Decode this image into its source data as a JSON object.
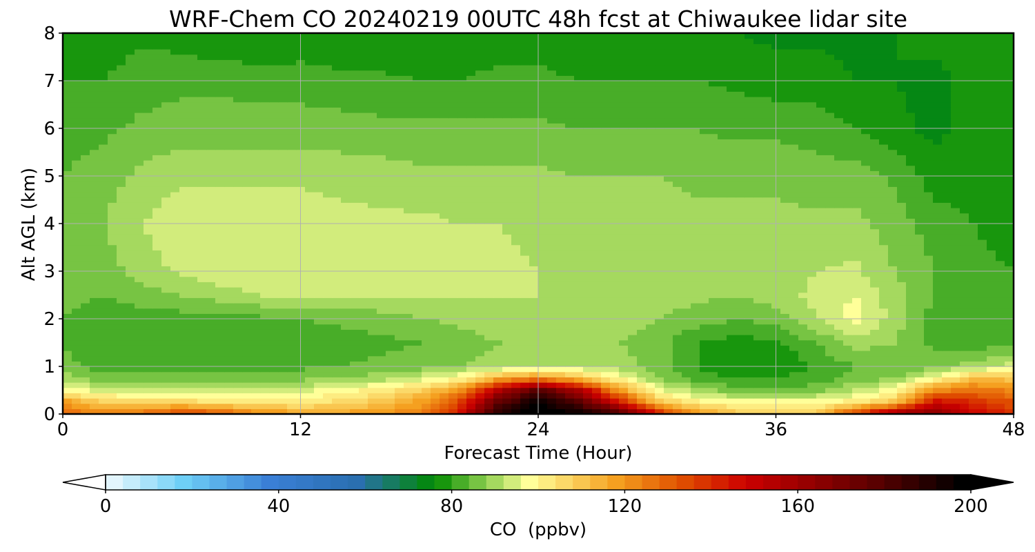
{
  "chart_data": {
    "type": "heatmap",
    "title": "WRF-Chem CO  20240219 00UTC 48h fcst at Chiwaukee lidar site",
    "xlabel": "Forecast Time (Hour)",
    "ylabel": "Alt AGL (km)",
    "xlim": [
      0,
      48
    ],
    "ylim": [
      0,
      8
    ],
    "xticks": [
      0,
      12,
      24,
      36,
      48
    ],
    "yticks": [
      0,
      1,
      2,
      3,
      4,
      5,
      6,
      7,
      8
    ],
    "grid": true,
    "colorbar": {
      "label": "CO  (ppbv)",
      "orientation": "horizontal",
      "placement": "bottom",
      "range": [
        0,
        200
      ],
      "ticks": [
        0,
        40,
        80,
        120,
        160,
        200
      ],
      "extend": "both",
      "stops": [
        {
          "value": 0,
          "color": "#ffffff"
        },
        {
          "value": 20,
          "color": "#6ecff6"
        },
        {
          "value": 40,
          "color": "#3a7fd6"
        },
        {
          "value": 60,
          "color": "#2a6fb0"
        },
        {
          "value": 78,
          "color": "#008a00"
        },
        {
          "value": 90,
          "color": "#8fd050"
        },
        {
          "value": 100,
          "color": "#ffff99"
        },
        {
          "value": 120,
          "color": "#f5a020"
        },
        {
          "value": 135,
          "color": "#e05000"
        },
        {
          "value": 150,
          "color": "#cc0000"
        },
        {
          "value": 180,
          "color": "#5a0000"
        },
        {
          "value": 200,
          "color": "#000000"
        }
      ]
    },
    "times": [
      0,
      2,
      4,
      6,
      8,
      10,
      12,
      14,
      16,
      18,
      20,
      22,
      24,
      26,
      28,
      30,
      32,
      34,
      36,
      38,
      40,
      42,
      44,
      46,
      48
    ],
    "altitudes": [
      0,
      0.25,
      0.5,
      0.75,
      1.0,
      1.5,
      2.0,
      2.5,
      3.0,
      4.0,
      5.0,
      6.0,
      7.0,
      8.0
    ],
    "co_ppbv": [
      [
        132,
        126,
        130,
        140,
        134,
        126,
        120,
        120,
        122,
        126,
        146,
        194,
        205,
        198,
        188,
        148,
        122,
        112,
        110,
        112,
        140,
        165,
        172,
        150,
        140
      ],
      [
        122,
        110,
        108,
        108,
        106,
        104,
        104,
        108,
        112,
        120,
        138,
        178,
        200,
        182,
        150,
        112,
        104,
        100,
        100,
        100,
        104,
        112,
        150,
        142,
        135
      ],
      [
        102,
        96,
        96,
        96,
        95,
        96,
        97,
        100,
        104,
        110,
        122,
        158,
        182,
        160,
        122,
        100,
        92,
        88,
        86,
        88,
        94,
        100,
        125,
        128,
        125
      ],
      [
        92,
        88,
        88,
        88,
        88,
        88,
        89,
        90,
        92,
        96,
        102,
        118,
        125,
        115,
        102,
        90,
        84,
        82,
        82,
        84,
        88,
        90,
        100,
        115,
        112
      ],
      [
        88,
        84,
        84,
        84,
        84,
        84,
        85,
        86,
        87,
        88,
        90,
        92,
        94,
        94,
        92,
        88,
        82,
        79,
        79,
        82,
        86,
        86,
        88,
        92,
        96
      ],
      [
        86,
        82,
        82,
        82,
        82,
        82,
        83,
        84,
        85,
        86,
        88,
        90,
        92,
        92,
        90,
        88,
        82,
        80,
        81,
        86,
        92,
        90,
        85,
        84,
        84
      ],
      [
        86,
        83,
        84,
        84,
        84,
        85,
        86,
        87,
        88,
        90,
        91,
        92,
        93,
        93,
        92,
        90,
        88,
        86,
        88,
        94,
        100,
        92,
        84,
        82,
        82
      ],
      [
        88,
        86,
        88,
        90,
        92,
        94,
        94,
        94,
        94,
        94,
        94,
        94,
        94,
        93,
        93,
        92,
        91,
        90,
        92,
        95,
        98,
        92,
        86,
        83,
        82
      ],
      [
        88,
        88,
        92,
        95,
        97,
        98,
        98,
        98,
        97,
        96,
        95,
        95,
        94,
        94,
        93,
        93,
        92,
        92,
        92,
        94,
        95,
        90,
        86,
        83,
        82
      ],
      [
        88,
        90,
        94,
        97,
        98,
        98,
        97,
        96,
        95,
        95,
        94,
        94,
        93,
        93,
        92,
        92,
        91,
        91,
        91,
        91,
        91,
        88,
        84,
        82,
        80
      ],
      [
        86,
        88,
        91,
        93,
        93,
        93,
        93,
        92,
        92,
        91,
        91,
        91,
        91,
        90,
        90,
        90,
        89,
        89,
        89,
        88,
        88,
        85,
        80,
        80,
        78
      ],
      [
        84,
        85,
        87,
        88,
        88,
        88,
        88,
        88,
        87,
        87,
        87,
        87,
        87,
        86,
        86,
        86,
        86,
        85,
        85,
        84,
        82,
        79,
        77,
        79,
        78
      ],
      [
        82,
        82,
        84,
        85,
        85,
        84,
        84,
        83,
        83,
        82,
        82,
        83,
        83,
        82,
        82,
        82,
        82,
        81,
        80,
        80,
        78,
        78,
        77,
        79,
        80
      ],
      [
        80,
        80,
        81,
        80,
        78,
        78,
        79,
        79,
        78,
        78,
        79,
        80,
        80,
        79,
        79,
        79,
        80,
        78,
        77,
        77,
        77,
        78,
        79,
        80,
        80
      ]
    ]
  }
}
